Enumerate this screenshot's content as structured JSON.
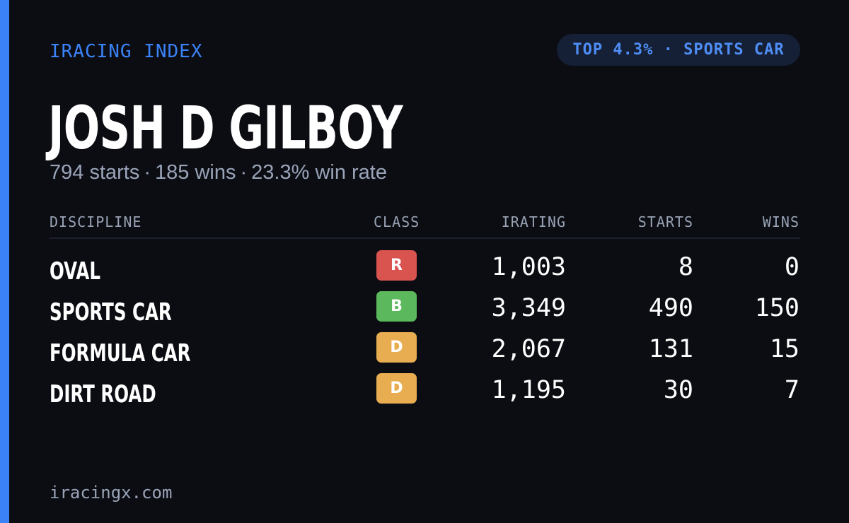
{
  "brand": "IRACING INDEX",
  "rank_badge": "TOP 4.3% · SPORTS CAR",
  "player": {
    "name": "JOSH D GILBOY",
    "starts": "794 starts",
    "wins": "185 wins",
    "win_rate": "23.3% win rate",
    "separator": "·"
  },
  "table": {
    "headers": {
      "discipline": "DISCIPLINE",
      "class": "CLASS",
      "irating": "IRATING",
      "starts": "STARTS",
      "wins": "WINS"
    },
    "rows": [
      {
        "discipline": "OVAL",
        "class": "R",
        "class_color": "#d9534f",
        "irating": "1,003",
        "starts": "8",
        "wins": "0"
      },
      {
        "discipline": "SPORTS CAR",
        "class": "B",
        "class_color": "#5cb85c",
        "irating": "3,349",
        "starts": "490",
        "wins": "150"
      },
      {
        "discipline": "FORMULA CAR",
        "class": "D",
        "class_color": "#e8ad50",
        "irating": "2,067",
        "starts": "131",
        "wins": "15"
      },
      {
        "discipline": "DIRT ROAD",
        "class": "D",
        "class_color": "#e8ad50",
        "irating": "1,195",
        "starts": "30",
        "wins": "7"
      }
    ]
  },
  "footer": "iracingx.com",
  "colors": {
    "accent": "#3b82f6",
    "background": "#0b0d13",
    "badge_bg": "#152036"
  }
}
